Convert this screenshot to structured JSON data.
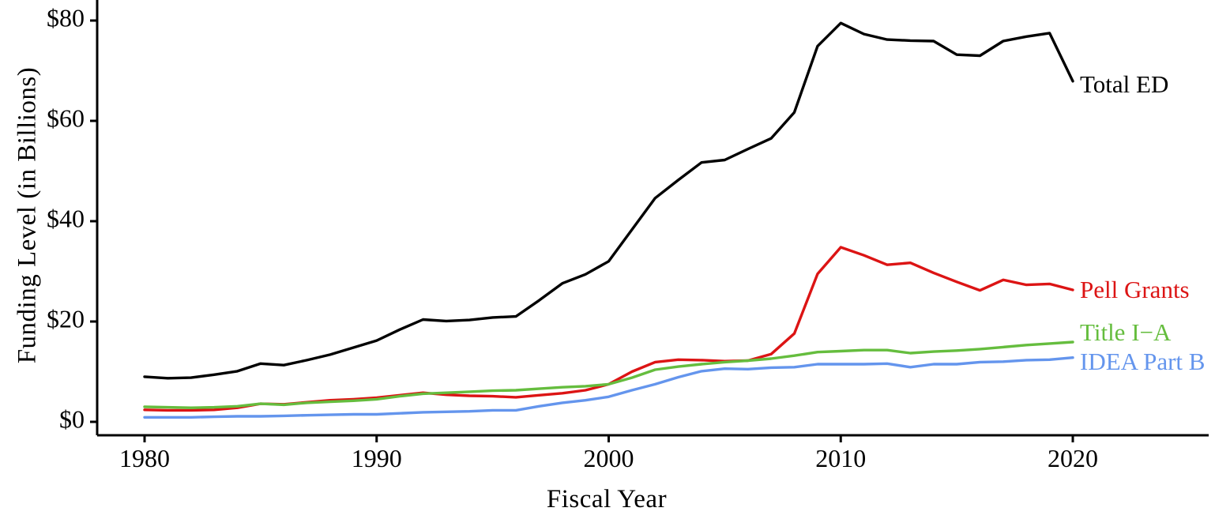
{
  "chart_data": {
    "type": "line",
    "title": "",
    "xlabel": "Fiscal Year",
    "ylabel": "Funding Level (in Billions)",
    "grid": false,
    "legend_position": "right-edge-direct-labels",
    "xlim": [
      1978,
      2026
    ],
    "ylim": [
      0,
      84
    ],
    "x_ticks": [
      1980,
      1990,
      2000,
      2010,
      2020
    ],
    "x_tick_labels": [
      "1980",
      "1990",
      "2000",
      "2010",
      "2020"
    ],
    "y_ticks": [
      0,
      20,
      40,
      60,
      80
    ],
    "y_tick_labels": [
      "$0",
      "$20",
      "$40",
      "$60",
      "$80"
    ],
    "x": [
      1980,
      1981,
      1982,
      1983,
      1984,
      1985,
      1986,
      1987,
      1988,
      1989,
      1990,
      1991,
      1992,
      1993,
      1994,
      1995,
      1996,
      1997,
      1998,
      1999,
      2000,
      2001,
      2002,
      2003,
      2004,
      2005,
      2006,
      2007,
      2008,
      2009,
      2010,
      2011,
      2012,
      2013,
      2014,
      2015,
      2016,
      2017,
      2018,
      2019,
      2020
    ],
    "series": [
      {
        "name": "Total ED",
        "color": "#000000",
        "values": [
          9.0,
          8.7,
          8.8,
          9.4,
          10.1,
          11.6,
          11.3,
          12.3,
          13.4,
          14.8,
          16.2,
          18.4,
          20.4,
          20.1,
          20.3,
          20.8,
          21.0,
          24.2,
          27.6,
          29.4,
          32.0,
          38.3,
          44.6,
          48.2,
          51.7,
          52.2,
          54.4,
          56.5,
          61.7,
          74.9,
          79.5,
          77.3,
          76.2,
          76.0,
          75.9,
          73.2,
          73.0,
          75.9,
          76.8,
          77.5,
          67.9
        ]
      },
      {
        "name": "Pell Grants",
        "color": "#dc1414",
        "values": [
          2.4,
          2.3,
          2.3,
          2.4,
          2.8,
          3.6,
          3.5,
          3.9,
          4.3,
          4.5,
          4.8,
          5.3,
          5.8,
          5.4,
          5.2,
          5.1,
          4.9,
          5.3,
          5.7,
          6.3,
          7.5,
          10.0,
          11.9,
          12.4,
          12.3,
          12.1,
          12.2,
          13.5,
          17.6,
          29.5,
          34.8,
          33.2,
          31.3,
          31.7,
          29.7,
          27.9,
          26.2,
          28.3,
          27.3,
          27.5,
          26.3
        ]
      },
      {
        "name": "Title I−A",
        "color": "#65bd3e",
        "values": [
          3.0,
          2.9,
          2.8,
          2.9,
          3.1,
          3.6,
          3.4,
          3.8,
          4.0,
          4.2,
          4.5,
          5.1,
          5.6,
          5.8,
          6.0,
          6.2,
          6.3,
          6.6,
          6.9,
          7.1,
          7.5,
          8.8,
          10.4,
          11.0,
          11.5,
          11.9,
          12.2,
          12.6,
          13.2,
          13.9,
          14.1,
          14.3,
          14.3,
          13.7,
          14.0,
          14.2,
          14.5,
          14.9,
          15.3,
          15.6,
          15.9
        ]
      },
      {
        "name": "IDEA Part B",
        "color": "#6495ed",
        "values": [
          0.9,
          0.9,
          0.9,
          1.0,
          1.1,
          1.1,
          1.2,
          1.3,
          1.4,
          1.5,
          1.5,
          1.7,
          1.9,
          2.0,
          2.1,
          2.3,
          2.3,
          3.1,
          3.8,
          4.3,
          5.0,
          6.3,
          7.5,
          8.9,
          10.1,
          10.6,
          10.5,
          10.8,
          10.9,
          11.5,
          11.5,
          11.5,
          11.6,
          10.9,
          11.5,
          11.5,
          11.9,
          12.0,
          12.3,
          12.4,
          12.8
        ]
      }
    ]
  }
}
